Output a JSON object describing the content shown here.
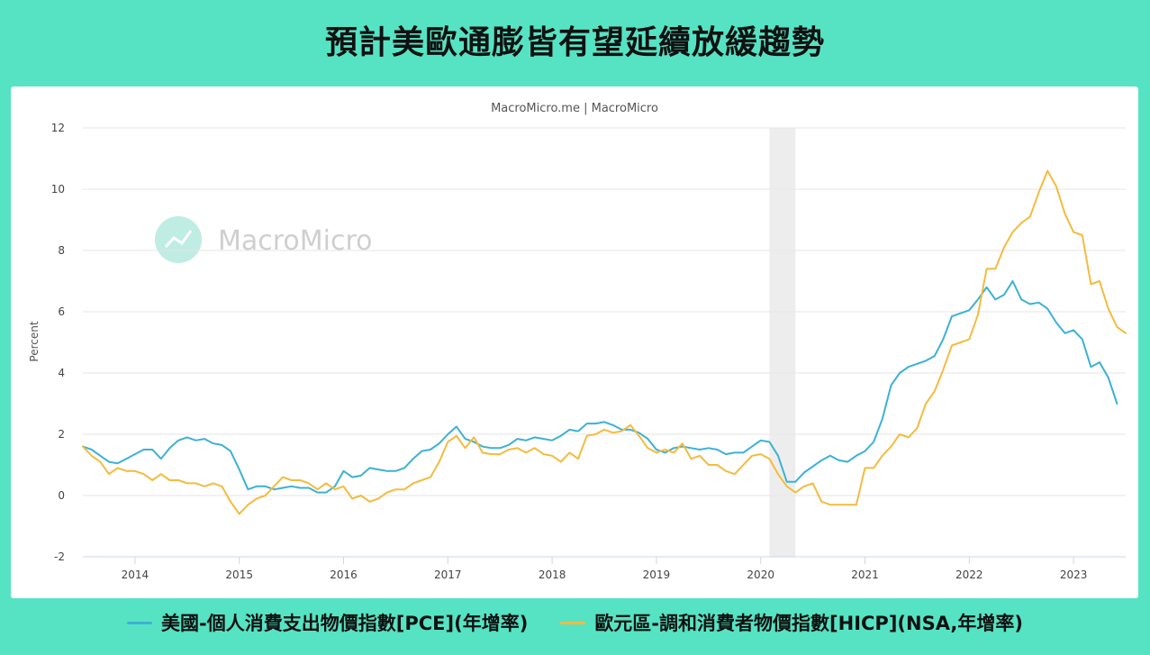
{
  "banner_title": "預計美歐通膨皆有望延續放緩趨勢",
  "chart_data": {
    "type": "line",
    "title": "",
    "source_label": "MacroMicro.me | MacroMicro",
    "watermark": "MacroMicro",
    "ylabel": "Percent",
    "xlabel": "",
    "ylim": [
      -2,
      12
    ],
    "yticks": [
      -2,
      0,
      2,
      4,
      6,
      8,
      10,
      12
    ],
    "xlim": [
      "2013-07",
      "2023-06"
    ],
    "xticks": [
      "2014",
      "2015",
      "2016",
      "2017",
      "2018",
      "2019",
      "2020",
      "2021",
      "2022",
      "2023"
    ],
    "grid": true,
    "legend_position": "bottom",
    "shaded_periods": [
      {
        "start": "2020-02",
        "end": "2020-04"
      }
    ],
    "series": [
      {
        "name": "美國-個人消費支出物價指數[PCE](年增率)",
        "color": "#3cb1d5",
        "points": [
          [
            "2013-07",
            1.6
          ],
          [
            "2013-08",
            1.5
          ],
          [
            "2013-09",
            1.3
          ],
          [
            "2013-10",
            1.1
          ],
          [
            "2013-11",
            1.05
          ],
          [
            "2013-12",
            1.2
          ],
          [
            "2014-01",
            1.35
          ],
          [
            "2014-02",
            1.5
          ],
          [
            "2014-03",
            1.5
          ],
          [
            "2014-04",
            1.2
          ],
          [
            "2014-05",
            1.55
          ],
          [
            "2014-06",
            1.8
          ],
          [
            "2014-07",
            1.9
          ],
          [
            "2014-08",
            1.8
          ],
          [
            "2014-09",
            1.85
          ],
          [
            "2014-10",
            1.7
          ],
          [
            "2014-11",
            1.65
          ],
          [
            "2014-12",
            1.45
          ],
          [
            "2015-01",
            0.85
          ],
          [
            "2015-02",
            0.2
          ],
          [
            "2015-03",
            0.3
          ],
          [
            "2015-04",
            0.3
          ],
          [
            "2015-05",
            0.2
          ],
          [
            "2015-06",
            0.25
          ],
          [
            "2015-07",
            0.3
          ],
          [
            "2015-08",
            0.25
          ],
          [
            "2015-09",
            0.25
          ],
          [
            "2015-10",
            0.1
          ],
          [
            "2015-11",
            0.1
          ],
          [
            "2015-12",
            0.3
          ],
          [
            "2016-01",
            0.8
          ],
          [
            "2016-02",
            0.6
          ],
          [
            "2016-03",
            0.65
          ],
          [
            "2016-04",
            0.9
          ],
          [
            "2016-05",
            0.85
          ],
          [
            "2016-06",
            0.8
          ],
          [
            "2016-07",
            0.8
          ],
          [
            "2016-08",
            0.9
          ],
          [
            "2016-09",
            1.2
          ],
          [
            "2016-10",
            1.45
          ],
          [
            "2016-11",
            1.5
          ],
          [
            "2016-12",
            1.7
          ],
          [
            "2017-01",
            2.0
          ],
          [
            "2017-02",
            2.25
          ],
          [
            "2017-03",
            1.85
          ],
          [
            "2017-04",
            1.75
          ],
          [
            "2017-05",
            1.6
          ],
          [
            "2017-06",
            1.55
          ],
          [
            "2017-07",
            1.55
          ],
          [
            "2017-08",
            1.65
          ],
          [
            "2017-09",
            1.85
          ],
          [
            "2017-10",
            1.8
          ],
          [
            "2017-11",
            1.9
          ],
          [
            "2017-12",
            1.85
          ],
          [
            "2018-01",
            1.8
          ],
          [
            "2018-02",
            1.95
          ],
          [
            "2018-03",
            2.15
          ],
          [
            "2018-04",
            2.1
          ],
          [
            "2018-05",
            2.35
          ],
          [
            "2018-06",
            2.35
          ],
          [
            "2018-07",
            2.4
          ],
          [
            "2018-08",
            2.3
          ],
          [
            "2018-09",
            2.15
          ],
          [
            "2018-10",
            2.15
          ],
          [
            "2018-11",
            2.05
          ],
          [
            "2018-12",
            1.85
          ],
          [
            "2019-01",
            1.5
          ],
          [
            "2019-02",
            1.4
          ],
          [
            "2019-03",
            1.55
          ],
          [
            "2019-04",
            1.6
          ],
          [
            "2019-05",
            1.55
          ],
          [
            "2019-06",
            1.5
          ],
          [
            "2019-07",
            1.55
          ],
          [
            "2019-08",
            1.5
          ],
          [
            "2019-09",
            1.35
          ],
          [
            "2019-10",
            1.4
          ],
          [
            "2019-11",
            1.4
          ],
          [
            "2019-12",
            1.6
          ],
          [
            "2020-01",
            1.8
          ],
          [
            "2020-02",
            1.75
          ],
          [
            "2020-03",
            1.3
          ],
          [
            "2020-04",
            0.45
          ],
          [
            "2020-05",
            0.45
          ],
          [
            "2020-06",
            0.75
          ],
          [
            "2020-07",
            0.95
          ],
          [
            "2020-08",
            1.15
          ],
          [
            "2020-09",
            1.3
          ],
          [
            "2020-10",
            1.15
          ],
          [
            "2020-11",
            1.1
          ],
          [
            "2020-12",
            1.3
          ],
          [
            "2021-01",
            1.45
          ],
          [
            "2021-02",
            1.75
          ],
          [
            "2021-03",
            2.5
          ],
          [
            "2021-04",
            3.6
          ],
          [
            "2021-05",
            4.0
          ],
          [
            "2021-06",
            4.2
          ],
          [
            "2021-07",
            4.3
          ],
          [
            "2021-08",
            4.4
          ],
          [
            "2021-09",
            4.55
          ],
          [
            "2021-10",
            5.1
          ],
          [
            "2021-11",
            5.85
          ],
          [
            "2021-12",
            5.95
          ],
          [
            "2022-01",
            6.05
          ],
          [
            "2022-02",
            6.4
          ],
          [
            "2022-03",
            6.8
          ],
          [
            "2022-04",
            6.4
          ],
          [
            "2022-05",
            6.55
          ],
          [
            "2022-06",
            7.0
          ],
          [
            "2022-07",
            6.4
          ],
          [
            "2022-08",
            6.25
          ],
          [
            "2022-09",
            6.3
          ],
          [
            "2022-10",
            6.1
          ],
          [
            "2022-11",
            5.65
          ],
          [
            "2022-12",
            5.3
          ],
          [
            "2023-01",
            5.4
          ],
          [
            "2023-02",
            5.1
          ],
          [
            "2023-03",
            4.2
          ],
          [
            "2023-04",
            4.35
          ],
          [
            "2023-05",
            3.85
          ],
          [
            "2023-06",
            3.0
          ]
        ]
      },
      {
        "name": "歐元區-調和消費者物價指數[HICP](NSA,年增率)",
        "color": "#f4bb3e",
        "points": [
          [
            "2013-07",
            1.6
          ],
          [
            "2013-08",
            1.3
          ],
          [
            "2013-09",
            1.1
          ],
          [
            "2013-10",
            0.7
          ],
          [
            "2013-11",
            0.9
          ],
          [
            "2013-12",
            0.8
          ],
          [
            "2014-01",
            0.8
          ],
          [
            "2014-02",
            0.7
          ],
          [
            "2014-03",
            0.5
          ],
          [
            "2014-04",
            0.7
          ],
          [
            "2014-05",
            0.5
          ],
          [
            "2014-06",
            0.5
          ],
          [
            "2014-07",
            0.4
          ],
          [
            "2014-08",
            0.4
          ],
          [
            "2014-09",
            0.3
          ],
          [
            "2014-10",
            0.4
          ],
          [
            "2014-11",
            0.3
          ],
          [
            "2014-12",
            -0.2
          ],
          [
            "2015-01",
            -0.6
          ],
          [
            "2015-02",
            -0.3
          ],
          [
            "2015-03",
            -0.1
          ],
          [
            "2015-04",
            0.0
          ],
          [
            "2015-05",
            0.3
          ],
          [
            "2015-06",
            0.6
          ],
          [
            "2015-07",
            0.5
          ],
          [
            "2015-08",
            0.5
          ],
          [
            "2015-09",
            0.4
          ],
          [
            "2015-10",
            0.2
          ],
          [
            "2015-11",
            0.4
          ],
          [
            "2015-12",
            0.2
          ],
          [
            "2016-01",
            0.3
          ],
          [
            "2016-02",
            -0.1
          ],
          [
            "2016-03",
            0.0
          ],
          [
            "2016-04",
            -0.2
          ],
          [
            "2016-05",
            -0.1
          ],
          [
            "2016-06",
            0.1
          ],
          [
            "2016-07",
            0.2
          ],
          [
            "2016-08",
            0.2
          ],
          [
            "2016-09",
            0.4
          ],
          [
            "2016-10",
            0.5
          ],
          [
            "2016-11",
            0.6
          ],
          [
            "2016-12",
            1.1
          ],
          [
            "2017-01",
            1.75
          ],
          [
            "2017-02",
            1.95
          ],
          [
            "2017-03",
            1.55
          ],
          [
            "2017-04",
            1.9
          ],
          [
            "2017-05",
            1.4
          ],
          [
            "2017-06",
            1.35
          ],
          [
            "2017-07",
            1.35
          ],
          [
            "2017-08",
            1.5
          ],
          [
            "2017-09",
            1.55
          ],
          [
            "2017-10",
            1.4
          ],
          [
            "2017-11",
            1.55
          ],
          [
            "2017-12",
            1.35
          ],
          [
            "2018-01",
            1.3
          ],
          [
            "2018-02",
            1.1
          ],
          [
            "2018-03",
            1.4
          ],
          [
            "2018-04",
            1.2
          ],
          [
            "2018-05",
            1.95
          ],
          [
            "2018-06",
            2.0
          ],
          [
            "2018-07",
            2.15
          ],
          [
            "2018-08",
            2.05
          ],
          [
            "2018-09",
            2.1
          ],
          [
            "2018-10",
            2.3
          ],
          [
            "2018-11",
            1.95
          ],
          [
            "2018-12",
            1.55
          ],
          [
            "2019-01",
            1.4
          ],
          [
            "2019-02",
            1.5
          ],
          [
            "2019-03",
            1.4
          ],
          [
            "2019-04",
            1.7
          ],
          [
            "2019-05",
            1.2
          ],
          [
            "2019-06",
            1.3
          ],
          [
            "2019-07",
            1.0
          ],
          [
            "2019-08",
            1.0
          ],
          [
            "2019-09",
            0.8
          ],
          [
            "2019-10",
            0.7
          ],
          [
            "2019-11",
            1.0
          ],
          [
            "2019-12",
            1.3
          ],
          [
            "2020-01",
            1.35
          ],
          [
            "2020-02",
            1.2
          ],
          [
            "2020-03",
            0.7
          ],
          [
            "2020-04",
            0.3
          ],
          [
            "2020-05",
            0.1
          ],
          [
            "2020-06",
            0.3
          ],
          [
            "2020-07",
            0.4
          ],
          [
            "2020-08",
            -0.2
          ],
          [
            "2020-09",
            -0.3
          ],
          [
            "2020-10",
            -0.3
          ],
          [
            "2020-11",
            -0.3
          ],
          [
            "2020-12",
            -0.3
          ],
          [
            "2021-01",
            0.9
          ],
          [
            "2021-02",
            0.9
          ],
          [
            "2021-03",
            1.3
          ],
          [
            "2021-04",
            1.6
          ],
          [
            "2021-05",
            2.0
          ],
          [
            "2021-06",
            1.9
          ],
          [
            "2021-07",
            2.2
          ],
          [
            "2021-08",
            3.0
          ],
          [
            "2021-09",
            3.4
          ],
          [
            "2021-10",
            4.1
          ],
          [
            "2021-11",
            4.9
          ],
          [
            "2021-12",
            5.0
          ],
          [
            "2022-01",
            5.1
          ],
          [
            "2022-02",
            5.9
          ],
          [
            "2022-03",
            7.4
          ],
          [
            "2022-04",
            7.4
          ],
          [
            "2022-05",
            8.1
          ],
          [
            "2022-06",
            8.6
          ],
          [
            "2022-07",
            8.9
          ],
          [
            "2022-08",
            9.1
          ],
          [
            "2022-09",
            9.9
          ],
          [
            "2022-10",
            10.6
          ],
          [
            "2022-11",
            10.1
          ],
          [
            "2022-12",
            9.2
          ],
          [
            "2023-01",
            8.6
          ],
          [
            "2023-02",
            8.5
          ],
          [
            "2023-03",
            6.9
          ],
          [
            "2023-04",
            7.0
          ],
          [
            "2023-05",
            6.1
          ],
          [
            "2023-06",
            5.5
          ],
          [
            "2023-07",
            5.3
          ]
        ]
      }
    ]
  }
}
